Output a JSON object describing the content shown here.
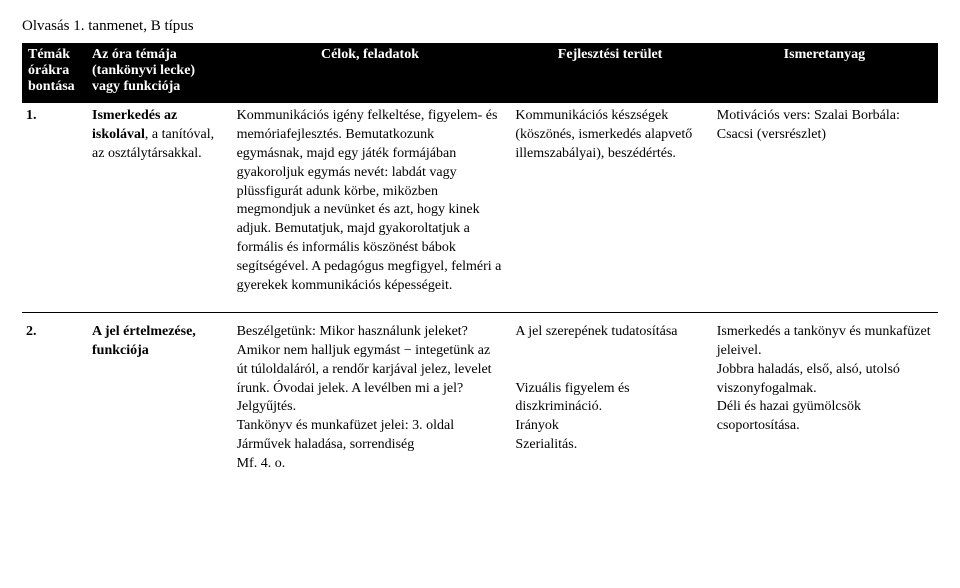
{
  "title": "Olvasás 1. tanmenet, B típus",
  "headers": {
    "h1": "Témák órákra bontása",
    "h2": "Az óra témája (tankönyvi lecke) vagy funkciója",
    "h3": "Célok, feladatok",
    "h4": "Fejlesztési terület",
    "h5": "Ismeretanyag"
  },
  "rows": [
    {
      "num": "1.",
      "topic_bold": "Ismerkedés az iskolával",
      "topic_rest": ", a tanítóval, az osztálytársakkal.",
      "goals": "Kommunikációs igény felkeltése, figyelem- és memóriafejlesztés. Bemutatkozunk egymásnak, majd egy játék formájában gyakoroljuk egymás nevét: labdát vagy plüssfigurát adunk körbe, miközben megmondjuk a nevünket és azt, hogy kinek adjuk. Bemutatjuk, majd gyakoroltatjuk a formális és informális köszönést bábok segítségével. A pedagógus megfigyel, felméri a gyerekek kommunikációs képességeit.",
      "area": "Kommunikációs készségek (köszönés, ismerkedés alapvető illemszabályai), beszédértés.",
      "material": "Motivációs vers: Szalai Borbála: Csacsi (versrészlet)"
    },
    {
      "num": "2.",
      "topic_bold": "A jel értelmezése, funkciója",
      "topic_rest": "",
      "goals": "Beszélgetünk: Mikor használunk jeleket? Amikor nem halljuk egymást − integetünk az út túloldaláról, a rendőr karjával jelez, levelet írunk. Óvodai jelek. A levélben mi a jel? Jelgyűjtés.\nTankönyv és munkafüzet jelei: 3. oldal\nJárművek haladása, sorrendiség\nMf. 4. o.",
      "area": "A jel szerepének tudatosítása\n\nVizuális figyelem és diszkrimináció.\nIrányok\nSzerialitás.",
      "material": "Ismerkedés a tankönyv és munkafüzet jeleivel.\nJobbra haladás, első, alsó, utolsó viszonyfogalmak.\nDéli és hazai gyümölcsök csoportosítása."
    }
  ]
}
